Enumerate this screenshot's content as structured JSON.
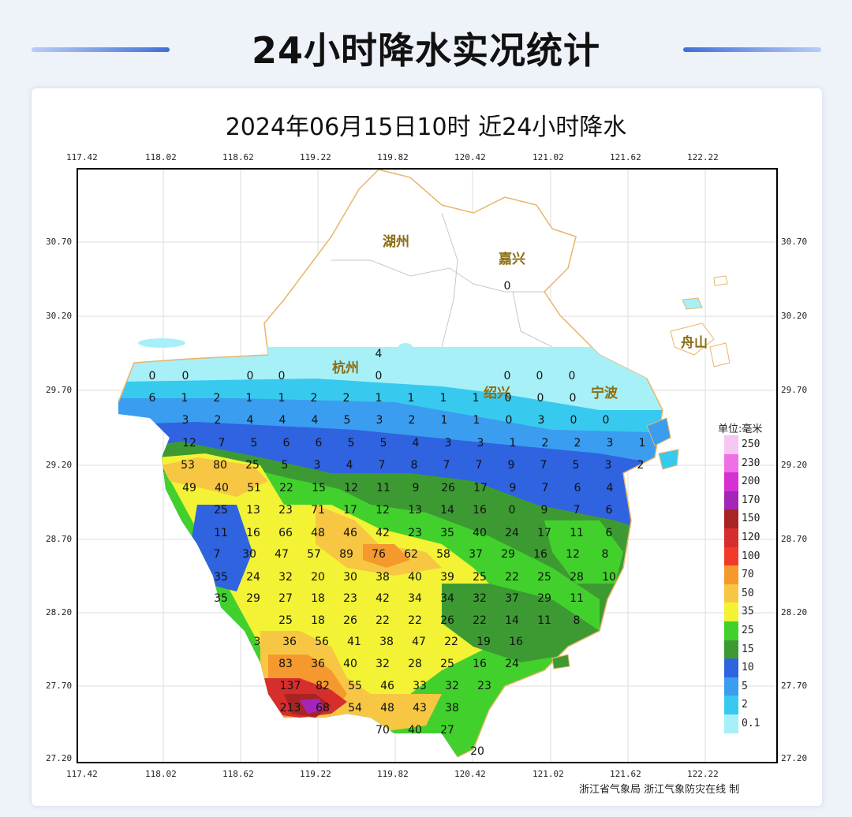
{
  "page_title": "24小时降水实况统计",
  "map_title": "2024年06月15日10时  近24小时降水",
  "lon_ticks": [
    "117.42",
    "118.02",
    "118.62",
    "119.22",
    "119.82",
    "120.42",
    "121.02",
    "121.62",
    "122.22"
  ],
  "lat_ticks": [
    "30.70",
    "30.20",
    "29.70",
    "29.20",
    "28.70",
    "28.20",
    "27.70",
    "27.20"
  ],
  "cities": [
    "湖州",
    "嘉兴",
    "杭州",
    "绍兴",
    "宁波",
    "舟山"
  ],
  "legend": {
    "unit": "单位:毫米",
    "items": [
      {
        "label": "250",
        "color": "#f7c6f2"
      },
      {
        "label": "230",
        "color": "#ee6fe6"
      },
      {
        "label": "200",
        "color": "#d62fd3"
      },
      {
        "label": "170",
        "color": "#a326b8"
      },
      {
        "label": "150",
        "color": "#a82424"
      },
      {
        "label": "120",
        "color": "#d62d2d"
      },
      {
        "label": "100",
        "color": "#f23a2a"
      },
      {
        "label": "70",
        "color": "#f5982e"
      },
      {
        "label": "50",
        "color": "#f7c743"
      },
      {
        "label": "35",
        "color": "#f3f235"
      },
      {
        "label": "25",
        "color": "#42d12c"
      },
      {
        "label": "15",
        "color": "#3d9a32"
      },
      {
        "label": "10",
        "color": "#2f63e0"
      },
      {
        "label": "5",
        "color": "#3a9df0"
      },
      {
        "label": "2",
        "color": "#38c9ef"
      },
      {
        "label": "0.1",
        "color": "#a7f0f7"
      }
    ]
  },
  "station_rows": [
    [
      "0",
      "0",
      "0",
      "0",
      "0",
      "0",
      "0",
      "0"
    ],
    [
      "6",
      "1",
      "2",
      "1",
      "1",
      "2",
      "2",
      "1",
      "1",
      "1",
      "1",
      "0",
      "0",
      "0"
    ],
    [
      "3",
      "2",
      "4",
      "4",
      "4",
      "5",
      "3",
      "2",
      "1",
      "1",
      "0",
      "3",
      "0",
      "0"
    ],
    [
      "12",
      "7",
      "5",
      "6",
      "6",
      "5",
      "5",
      "4",
      "3",
      "3",
      "1",
      "2",
      "2",
      "3",
      "1"
    ],
    [
      "53",
      "80",
      "25",
      "5",
      "3",
      "4",
      "7",
      "8",
      "7",
      "7",
      "9",
      "7",
      "5",
      "3",
      "2"
    ],
    [
      "49",
      "40",
      "51",
      "22",
      "15",
      "12",
      "11",
      "9",
      "26",
      "17",
      "9",
      "7",
      "6",
      "4"
    ],
    [
      "25",
      "13",
      "23",
      "71",
      "17",
      "12",
      "13",
      "14",
      "16",
      "0",
      "9",
      "7",
      "6"
    ],
    [
      "11",
      "16",
      "66",
      "48",
      "46",
      "42",
      "23",
      "35",
      "40",
      "24",
      "17",
      "11",
      "6"
    ],
    [
      "7",
      "30",
      "47",
      "57",
      "89",
      "76",
      "62",
      "58",
      "37",
      "29",
      "16",
      "12",
      "8"
    ],
    [
      "35",
      "24",
      "32",
      "20",
      "30",
      "38",
      "40",
      "39",
      "25",
      "22",
      "25",
      "28",
      "10"
    ],
    [
      "35",
      "29",
      "27",
      "18",
      "23",
      "42",
      "34",
      "34",
      "32",
      "37",
      "29",
      "11"
    ],
    [
      "25",
      "18",
      "26",
      "22",
      "22",
      "26",
      "22",
      "14",
      "11",
      "8"
    ],
    [
      "3",
      "36",
      "56",
      "41",
      "38",
      "47",
      "22",
      "19",
      "16"
    ],
    [
      "83",
      "36",
      "40",
      "32",
      "28",
      "25",
      "16",
      "24"
    ],
    [
      "137",
      "82",
      "55",
      "46",
      "33",
      "32",
      "23"
    ],
    [
      "213",
      "68",
      "54",
      "48",
      "43",
      "38"
    ],
    [
      "70",
      "40",
      "27"
    ],
    [
      "20"
    ]
  ],
  "footer": "浙江省气象局   浙江气象防灾在线 制"
}
